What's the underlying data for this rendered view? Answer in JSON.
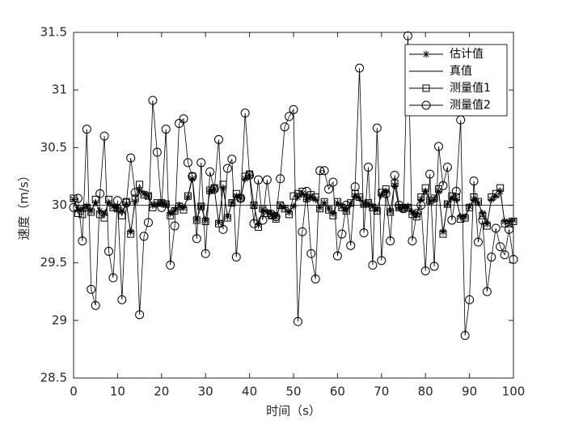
{
  "chart_data": {
    "type": "line",
    "xlabel": "时间（s）",
    "ylabel": "速度（m/s）",
    "x": [
      0,
      1,
      2,
      3,
      4,
      5,
      6,
      7,
      8,
      9,
      10,
      11,
      12,
      13,
      14,
      15,
      16,
      17,
      18,
      19,
      20,
      21,
      22,
      23,
      24,
      25,
      26,
      27,
      28,
      29,
      30,
      31,
      32,
      33,
      34,
      35,
      36,
      37,
      38,
      39,
      40,
      41,
      42,
      43,
      44,
      45,
      46,
      47,
      48,
      49,
      50,
      51,
      52,
      53,
      54,
      55,
      56,
      57,
      58,
      59,
      60,
      61,
      62,
      63,
      64,
      65,
      66,
      67,
      68,
      69,
      70,
      71,
      72,
      73,
      74,
      75,
      76,
      77,
      78,
      79,
      80,
      81,
      82,
      83,
      84,
      85,
      86,
      87,
      88,
      89,
      90,
      91,
      92,
      93,
      94,
      95,
      96,
      97,
      98,
      99,
      100
    ],
    "series": [
      {
        "name": "估计值",
        "color": "#000000",
        "marker": "star",
        "values": [
          30.05,
          29.96,
          29.97,
          29.99,
          29.95,
          30.02,
          29.95,
          29.93,
          30.02,
          29.99,
          29.98,
          29.95,
          30.01,
          29.77,
          30.03,
          30.13,
          30.1,
          30.08,
          30.0,
          30.01,
          30.02,
          30.01,
          29.93,
          29.96,
          30.0,
          29.98,
          30.07,
          30.23,
          29.88,
          29.99,
          29.87,
          30.12,
          30.14,
          29.85,
          30.15,
          29.9,
          30.02,
          30.08,
          30.06,
          30.23,
          30.26,
          30.0,
          29.83,
          29.96,
          29.94,
          29.92,
          29.9,
          30.0,
          29.98,
          29.94,
          29.99,
          30.07,
          30.1,
          30.05,
          30.07,
          30.05,
          29.98,
          30.02,
          29.97,
          29.93,
          30.02,
          29.99,
          29.96,
          30.01,
          30.08,
          30.06,
          30.01,
          30.01,
          29.99,
          29.96,
          30.09,
          30.12,
          29.95,
          30.17,
          29.98,
          29.98,
          29.99,
          29.94,
          29.92,
          30.05,
          30.12,
          30.03,
          30.05,
          30.12,
          29.77,
          30.01,
          30.06,
          30.05,
          29.9,
          29.9,
          29.99,
          30.05,
          30.02,
          29.93,
          29.84,
          30.05,
          30.08,
          30.12,
          29.86,
          29.86,
          29.87
        ]
      },
      {
        "name": "真值",
        "color": "#000000",
        "marker": "none",
        "values": [
          30,
          30,
          30,
          30,
          30,
          30,
          30,
          30,
          30,
          30,
          30,
          30,
          30,
          30,
          30,
          30,
          30,
          30,
          30,
          30,
          30,
          30,
          30,
          30,
          30,
          30,
          30,
          30,
          30,
          30,
          30,
          30,
          30,
          30,
          30,
          30,
          30,
          30,
          30,
          30,
          30,
          30,
          30,
          30,
          30,
          30,
          30,
          30,
          30,
          30,
          30,
          30,
          30,
          30,
          30,
          30,
          30,
          30,
          30,
          30,
          30,
          30,
          30,
          30,
          30,
          30,
          30,
          30,
          30,
          30,
          30,
          30,
          30,
          30,
          30,
          30,
          30,
          30,
          30,
          30,
          30,
          30,
          30,
          30,
          30,
          30,
          30,
          30,
          30,
          30,
          30,
          30,
          30,
          30,
          30,
          30,
          30,
          30,
          30,
          30,
          30
        ]
      },
      {
        "name": "测量值1",
        "color": "#000000",
        "marker": "square",
        "values": [
          30.06,
          29.93,
          29.92,
          29.98,
          29.94,
          30.05,
          29.92,
          29.89,
          30.05,
          29.98,
          29.97,
          29.91,
          30.03,
          29.75,
          30.06,
          30.18,
          30.09,
          30.08,
          29.98,
          30.02,
          30.02,
          30.01,
          29.91,
          29.95,
          29.99,
          29.96,
          30.08,
          30.25,
          29.87,
          29.99,
          29.86,
          30.13,
          30.15,
          29.84,
          30.18,
          29.89,
          30.02,
          30.1,
          30.06,
          30.25,
          30.27,
          30.0,
          29.81,
          29.97,
          29.93,
          29.91,
          29.88,
          30.0,
          29.97,
          29.92,
          30.08,
          30.1,
          30.12,
          30.06,
          30.09,
          30.07,
          29.97,
          30.03,
          29.96,
          29.91,
          30.03,
          29.98,
          29.95,
          30.02,
          30.1,
          30.07,
          30.01,
          30.02,
          29.98,
          29.95,
          30.11,
          30.14,
          29.94,
          30.19,
          29.98,
          29.97,
          29.98,
          29.92,
          29.9,
          30.07,
          30.15,
          30.04,
          30.06,
          30.14,
          29.75,
          30.01,
          30.08,
          30.07,
          29.88,
          29.89,
          29.98,
          30.07,
          30.03,
          29.91,
          29.82,
          30.07,
          30.1,
          30.15,
          29.84,
          29.84,
          29.86
        ]
      },
      {
        "name": "测量值2",
        "color": "#000000",
        "marker": "circle",
        "values": [
          29.98,
          30.06,
          29.69,
          30.66,
          29.27,
          29.13,
          30.1,
          30.6,
          29.6,
          29.37,
          30.04,
          29.18,
          30.02,
          30.41,
          30.11,
          29.05,
          29.73,
          29.85,
          30.91,
          30.46,
          29.98,
          30.66,
          29.48,
          29.82,
          30.71,
          30.75,
          30.37,
          30.25,
          29.71,
          30.37,
          29.58,
          30.29,
          30.14,
          30.57,
          29.79,
          30.32,
          30.4,
          29.55,
          30.06,
          30.8,
          30.26,
          29.84,
          30.22,
          29.87,
          30.22,
          29.92,
          29.9,
          30.23,
          30.68,
          30.77,
          30.83,
          28.99,
          29.77,
          30.12,
          29.58,
          29.36,
          30.3,
          30.3,
          30.14,
          30.2,
          29.56,
          29.75,
          30.0,
          29.65,
          30.16,
          31.19,
          29.76,
          30.33,
          29.48,
          30.67,
          29.52,
          30.1,
          29.69,
          30.26,
          30.0,
          29.97,
          31.47,
          29.69,
          29.93,
          30.0,
          29.43,
          30.27,
          29.47,
          30.51,
          30.17,
          30.33,
          29.87,
          30.12,
          30.74,
          28.87,
          29.18,
          30.21,
          29.68,
          29.87,
          29.25,
          29.55,
          29.8,
          29.64,
          29.57,
          29.79,
          29.53
        ]
      }
    ],
    "xlim": [
      0,
      100
    ],
    "xticks": [
      0,
      10,
      20,
      30,
      40,
      50,
      60,
      70,
      80,
      90,
      100
    ],
    "ylim": [
      28.5,
      31.5
    ],
    "yticks": [
      28.5,
      29,
      29.5,
      30,
      30.5,
      31,
      31.5
    ],
    "legend": "top-right"
  }
}
